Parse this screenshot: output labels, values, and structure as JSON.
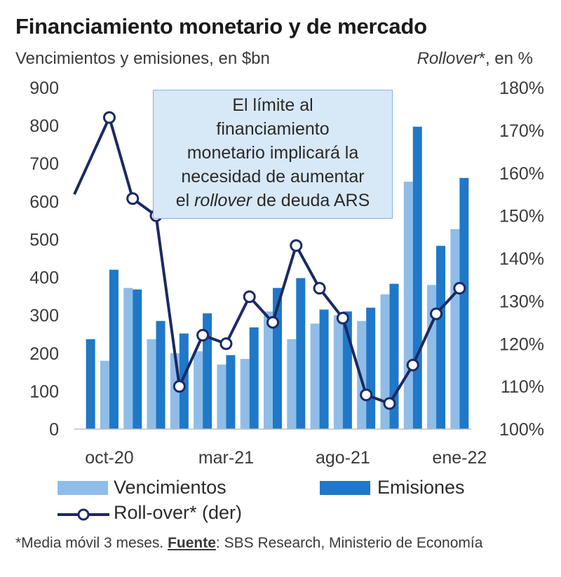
{
  "title": "Financiamiento monetario y de mercado",
  "subtitle_left": "Vencimientos y emisiones, en $bn",
  "subtitle_right_italic": "Rollover",
  "subtitle_right_rest": "*, en %",
  "callout": {
    "line1": "El límite al",
    "line2": "financiamiento",
    "line3": "monetario implicará la",
    "line4": "necesidad de aumentar",
    "line5_pre": "el ",
    "line5_italic": "rollover",
    "line5_post": " de deuda ARS"
  },
  "legend": {
    "vencimientos": "Vencimientos",
    "emisiones": "Emisiones",
    "rollover": "Roll-over* (der)"
  },
  "footnote": {
    "pre": "*Media móvil 3 meses. ",
    "bold": "Fuente",
    "post": ": SBS Research, Ministerio de Economía"
  },
  "colors": {
    "vencimientos": "#8fbde8",
    "emisiones": "#1f78c8",
    "rollover": "#1b2a63"
  },
  "chart_data": {
    "type": "bar+line",
    "categories": [
      "sep-20",
      "oct-20",
      "nov-20",
      "dic-20",
      "ene-21",
      "feb-21",
      "mar-21",
      "abr-21",
      "may-21",
      "jun-21",
      "jul-21",
      "ago-21",
      "sep-21",
      "oct-21",
      "nov-21",
      "dic-21",
      "ene-22"
    ],
    "x_tick_labels": [
      "oct-20",
      "mar-21",
      "ago-21",
      "ene-22"
    ],
    "series": [
      {
        "name": "Vencimientos",
        "axis": "left",
        "values": [
          null,
          180,
          372,
          237,
          200,
          205,
          170,
          185,
          310,
          237,
          278,
          300,
          285,
          355,
          652,
          380,
          527
        ]
      },
      {
        "name": "Emisiones",
        "axis": "left",
        "values": [
          237,
          420,
          368,
          285,
          252,
          305,
          195,
          268,
          372,
          398,
          315,
          310,
          320,
          383,
          797,
          483,
          662
        ]
      },
      {
        "name": "Roll-over* (der)",
        "axis": "right",
        "values": [
          155,
          173,
          154,
          150,
          110,
          122,
          120,
          131,
          125,
          143,
          133,
          126,
          108,
          106,
          115,
          127,
          133
        ]
      }
    ],
    "yaxis_left": {
      "label": "Vencimientos y emisiones, en $bn",
      "min": 0,
      "max": 900,
      "ticks": [
        "0",
        "100",
        "200",
        "300",
        "400",
        "500",
        "600",
        "700",
        "800",
        "900"
      ]
    },
    "yaxis_right": {
      "label": "Rollover*, en %",
      "min": 100,
      "max": 180,
      "ticks": [
        "100%",
        "110%",
        "120%",
        "130%",
        "140%",
        "150%",
        "160%",
        "170%",
        "180%"
      ]
    }
  }
}
